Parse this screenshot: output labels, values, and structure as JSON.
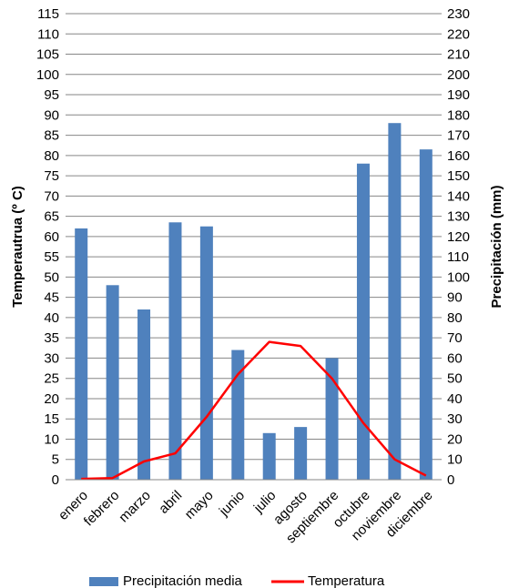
{
  "chart_data": {
    "type": "bar+line",
    "title": "",
    "categories": [
      "enero",
      "febrero",
      "marzo",
      "abril",
      "mayo",
      "junio",
      "julio",
      "agosto",
      "septiembre",
      "octubre",
      "noviembre",
      "diciembre"
    ],
    "series": [
      {
        "name": "Precipitación media",
        "type": "bar",
        "axis": "right",
        "color": "#4f81bd",
        "values": [
          124,
          96,
          84,
          127,
          125,
          64,
          23,
          26,
          60,
          156,
          176,
          163
        ]
      },
      {
        "name": "Temperatura",
        "type": "line",
        "axis": "left",
        "color": "#ff0000",
        "values": [
          0.2,
          0.4,
          4.5,
          6.5,
          15.5,
          26,
          34,
          33,
          25,
          14,
          5,
          1
        ]
      }
    ],
    "ylabel_left": "Temperautrua (º C)",
    "ylabel_right": "Precipitación (mm)",
    "ylim_left": [
      0,
      115
    ],
    "ylim_right": [
      0,
      230
    ],
    "yticks_left": [
      "0",
      "5",
      "10",
      "15",
      "20",
      "25",
      "30",
      "35",
      "40",
      "45",
      "50",
      "55",
      "60",
      "65",
      "70",
      "75",
      "80",
      "85",
      "90",
      "95",
      "100",
      "105",
      "110",
      "115"
    ],
    "yticks_right": [
      "0",
      "10",
      "20",
      "30",
      "40",
      "50",
      "60",
      "70",
      "80",
      "90",
      "100",
      "110",
      "120",
      "130",
      "140",
      "150",
      "160",
      "170",
      "180",
      "190",
      "200",
      "210",
      "220",
      "230"
    ],
    "grid": true,
    "legend": "bottom"
  }
}
